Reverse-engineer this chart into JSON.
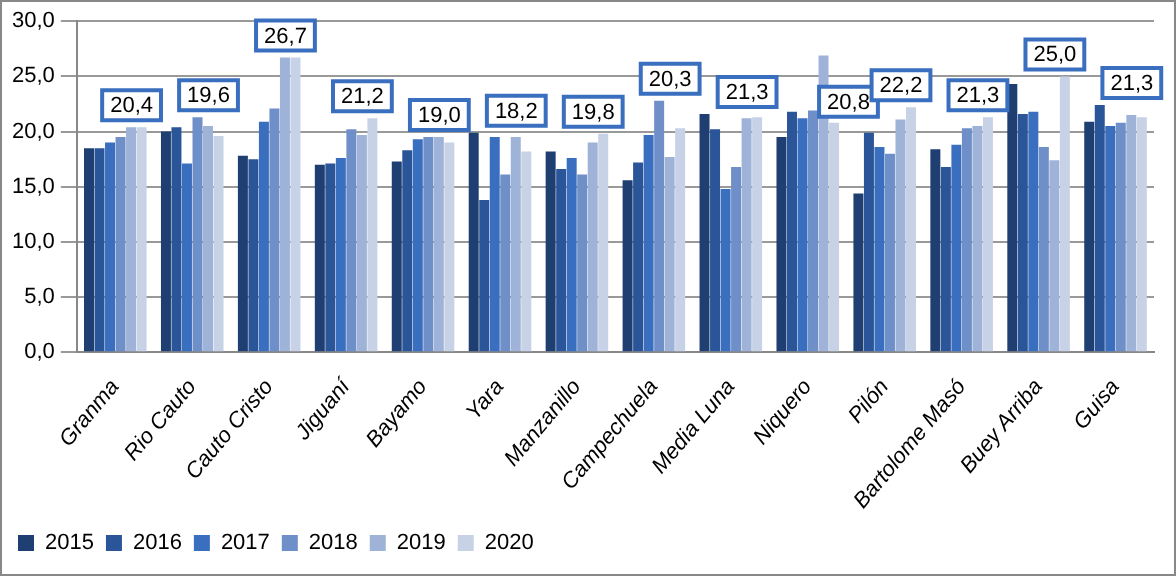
{
  "chart_data": {
    "type": "bar",
    "categories": [
      "Granma",
      "Rio Cauto",
      "Cauto Cristo",
      "Jiguaní",
      "Bayamo",
      "Yara",
      "Manzanillo",
      "Campechuela",
      "Media Luna",
      "Niquero",
      "Pilón",
      "Bartolome Masó",
      "Buey Arriba",
      "Guisa"
    ],
    "series": [
      {
        "name": "2015",
        "color": "#1f3f73",
        "values": [
          18.5,
          20.0,
          17.8,
          17.0,
          17.3,
          19.9,
          18.2,
          15.6,
          21.6,
          19.5,
          14.4,
          18.4,
          24.3,
          20.9
        ]
      },
      {
        "name": "2016",
        "color": "#2a5599",
        "values": [
          18.5,
          20.4,
          17.5,
          17.1,
          18.3,
          13.8,
          16.6,
          17.2,
          20.2,
          21.8,
          19.9,
          16.8,
          21.6,
          22.4
        ]
      },
      {
        "name": "2017",
        "color": "#3a6fc0",
        "values": [
          19.0,
          17.1,
          20.9,
          17.6,
          19.3,
          19.5,
          17.6,
          19.7,
          14.8,
          21.2,
          18.6,
          18.8,
          21.8,
          20.5
        ]
      },
      {
        "name": "2018",
        "color": "#6f8fc8",
        "values": [
          19.5,
          21.3,
          22.1,
          20.2,
          19.5,
          16.1,
          16.1,
          22.8,
          16.8,
          21.9,
          18.0,
          20.3,
          18.6,
          20.8
        ]
      },
      {
        "name": "2019",
        "color": "#9fb3d8",
        "values": [
          20.4,
          20.5,
          26.7,
          19.7,
          19.5,
          19.5,
          19.0,
          17.7,
          21.2,
          26.9,
          21.1,
          20.5,
          17.4,
          21.5
        ]
      },
      {
        "name": "2020",
        "color": "#c7d2e6",
        "values": [
          20.4,
          19.6,
          26.7,
          21.2,
          19.0,
          18.2,
          19.8,
          20.3,
          21.3,
          20.8,
          22.2,
          21.3,
          25.0,
          21.3
        ],
        "value_labels": [
          "20,4",
          "19,6",
          "26,7",
          "21,2",
          "19,0",
          "18,2",
          "19,8",
          "20,3",
          "21,3",
          "20,8",
          "22,2",
          "21,3",
          "25,0",
          "21,3"
        ]
      }
    ],
    "ylim": [
      0,
      30
    ],
    "yticks": [
      {
        "value": 0,
        "label": "0,0"
      },
      {
        "value": 5,
        "label": "5,0"
      },
      {
        "value": 10,
        "label": "10,0"
      },
      {
        "value": 15,
        "label": "15,0"
      },
      {
        "value": 20,
        "label": "20,0"
      },
      {
        "value": 25,
        "label": "25,0"
      },
      {
        "value": 30,
        "label": "30,0"
      }
    ],
    "grid": "y",
    "legend": "bottom"
  }
}
